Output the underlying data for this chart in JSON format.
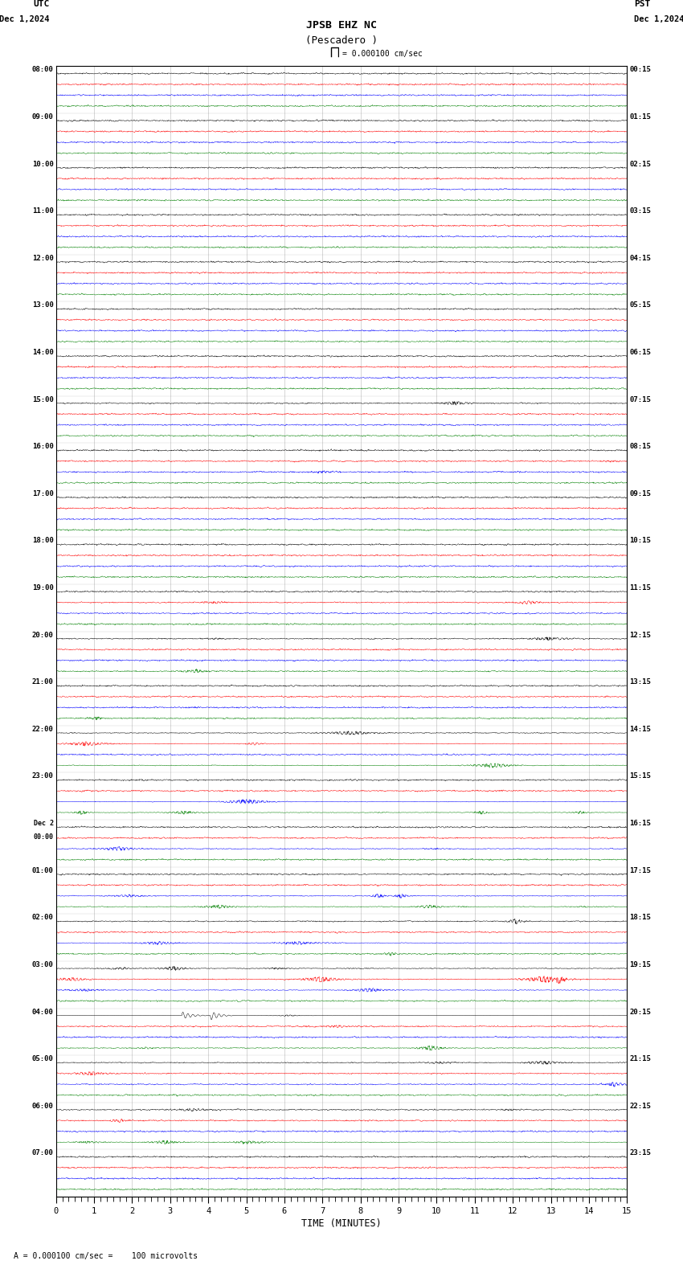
{
  "title_line1": "JPSB EHZ NC",
  "title_line2": "(Pescadero )",
  "scale_label": "= 0.000100 cm/sec",
  "utc_label": "UTC",
  "pst_label": "PST",
  "date_left": "Dec 1,2024",
  "date_right": "Dec 1,2024",
  "bottom_label": "A = 0.000100 cm/sec =    100 microvolts",
  "xlabel": "TIME (MINUTES)",
  "utc_times": [
    "08:00",
    "09:00",
    "10:00",
    "11:00",
    "12:00",
    "13:00",
    "14:00",
    "15:00",
    "16:00",
    "17:00",
    "18:00",
    "19:00",
    "20:00",
    "21:00",
    "22:00",
    "23:00",
    "Dec 2\n00:00",
    "01:00",
    "02:00",
    "03:00",
    "04:00",
    "05:00",
    "06:00",
    "07:00"
  ],
  "pst_times": [
    "00:15",
    "01:15",
    "02:15",
    "03:15",
    "04:15",
    "05:15",
    "06:15",
    "07:15",
    "08:15",
    "09:15",
    "10:15",
    "11:15",
    "12:15",
    "13:15",
    "14:15",
    "15:15",
    "16:15",
    "17:15",
    "18:15",
    "19:15",
    "20:15",
    "21:15",
    "22:15",
    "23:15"
  ],
  "n_hour_rows": 24,
  "traces_per_hour": 4,
  "trace_colors": [
    "black",
    "red",
    "blue",
    "green"
  ],
  "bg_color": "white",
  "fig_width": 8.5,
  "fig_height": 15.84,
  "time_minutes": 15,
  "grid_color": "#888888",
  "border_color": "black"
}
